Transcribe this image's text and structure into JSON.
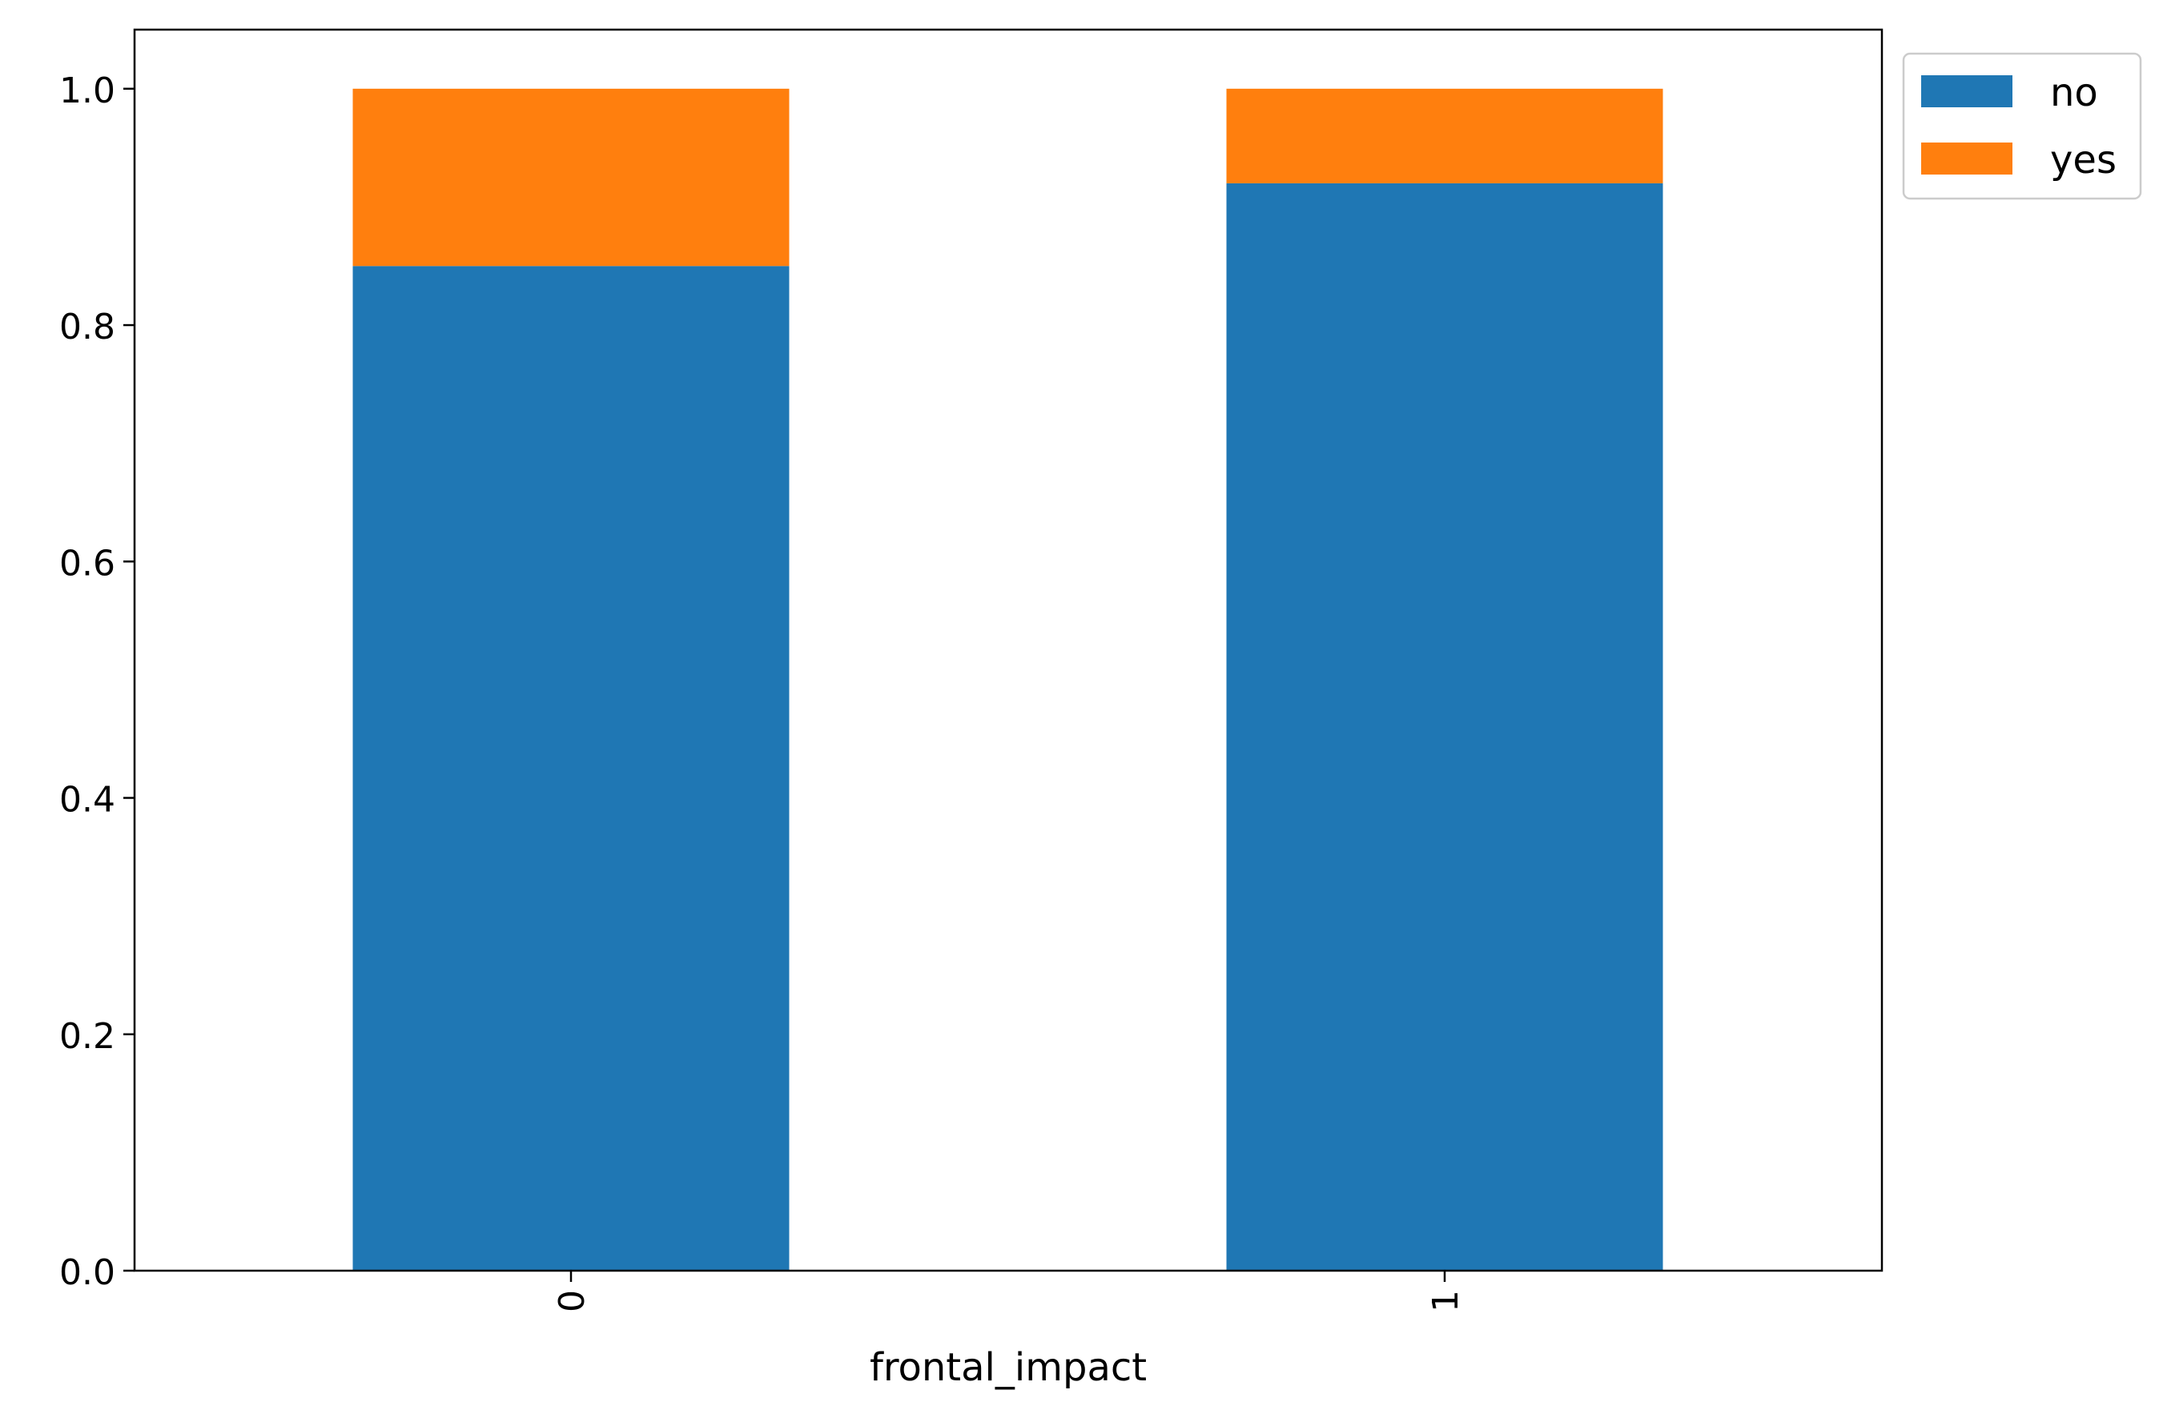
{
  "chart_data": {
    "type": "bar",
    "stacked": true,
    "categories": [
      "0",
      "1"
    ],
    "series": [
      {
        "name": "no",
        "color": "#1f77b4",
        "values": [
          0.85,
          0.92
        ]
      },
      {
        "name": "yes",
        "color": "#ff7f0e",
        "values": [
          0.15,
          0.08
        ]
      }
    ],
    "xlabel": "frontal_impact",
    "ylabel": "",
    "title": "",
    "ylim": [
      0,
      1.05
    ],
    "yticks": [
      "0.0",
      "0.2",
      "0.4",
      "0.6",
      "0.8",
      "1.0"
    ],
    "x_tick_rotation": 90,
    "grid": false,
    "legend_position": "outside-top-right"
  }
}
